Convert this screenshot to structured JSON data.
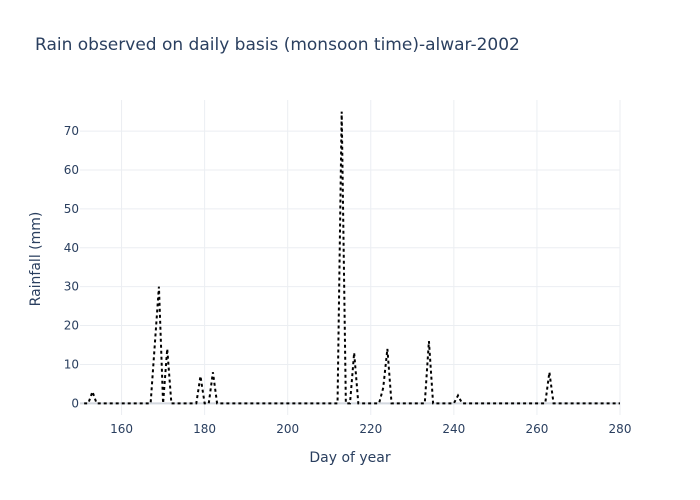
{
  "chart_data": {
    "type": "line",
    "title": "Rain observed on daily basis (monsoon time)-alwar-2002",
    "xlabel": "Day of year",
    "ylabel": "Rainfall (mm)",
    "xlim": [
      150,
      280
    ],
    "ylim": [
      -3,
      78
    ],
    "xticks": [
      160,
      180,
      200,
      220,
      240,
      260,
      280
    ],
    "yticks": [
      0,
      10,
      20,
      30,
      40,
      50,
      60,
      70
    ],
    "grid": true,
    "line_style": "dotted",
    "line_color": "#000000",
    "series": [
      {
        "x": [
          151,
          152,
          153,
          154,
          155,
          156,
          157,
          158,
          159,
          160,
          161,
          162,
          163,
          164,
          165,
          166,
          167,
          168,
          169,
          170,
          171,
          172,
          173,
          174,
          175,
          176,
          177,
          178,
          179,
          180,
          181,
          182,
          183,
          184,
          185,
          186,
          187,
          188,
          189,
          190,
          191,
          192,
          193,
          194,
          195,
          196,
          197,
          198,
          199,
          200,
          201,
          202,
          203,
          204,
          205,
          206,
          207,
          208,
          209,
          210,
          211,
          212,
          213,
          214,
          215,
          216,
          217,
          218,
          219,
          220,
          221,
          222,
          223,
          224,
          225,
          226,
          227,
          228,
          229,
          230,
          231,
          232,
          233,
          234,
          235,
          236,
          237,
          238,
          239,
          240,
          241,
          242,
          243,
          244,
          245,
          246,
          247,
          248,
          249,
          250,
          251,
          252,
          253,
          254,
          255,
          256,
          257,
          258,
          259,
          260,
          261,
          262,
          263,
          264,
          265,
          266,
          267,
          268,
          269,
          270,
          271,
          272,
          273,
          274,
          275,
          276,
          277,
          278,
          279,
          280
        ],
        "y": [
          0,
          0,
          3,
          0,
          0,
          0,
          0,
          0,
          0,
          0,
          0,
          0,
          0,
          0,
          0,
          0,
          0,
          15,
          30,
          0,
          14,
          0,
          0,
          0,
          0,
          0,
          0,
          0,
          7,
          0,
          0,
          8,
          0,
          0,
          0,
          0,
          0,
          0,
          0,
          0,
          0,
          0,
          0,
          0,
          0,
          0,
          0,
          0,
          0,
          0,
          0,
          0,
          0,
          0,
          0,
          0,
          0,
          0,
          0,
          0,
          0,
          0,
          75,
          0,
          0,
          13,
          0,
          0,
          0,
          0,
          0,
          0,
          4,
          14,
          0,
          0,
          0,
          0,
          0,
          0,
          0,
          0,
          0,
          16,
          0,
          0,
          0,
          0,
          0,
          0,
          2,
          0,
          0,
          0,
          0,
          0,
          0,
          0,
          0,
          0,
          0,
          0,
          0,
          0,
          0,
          0,
          0,
          0,
          0,
          0,
          0,
          0,
          8,
          0,
          0,
          0,
          0,
          0,
          0,
          0,
          0,
          0,
          0,
          0,
          0,
          0,
          0,
          0,
          0,
          0
        ]
      }
    ]
  }
}
